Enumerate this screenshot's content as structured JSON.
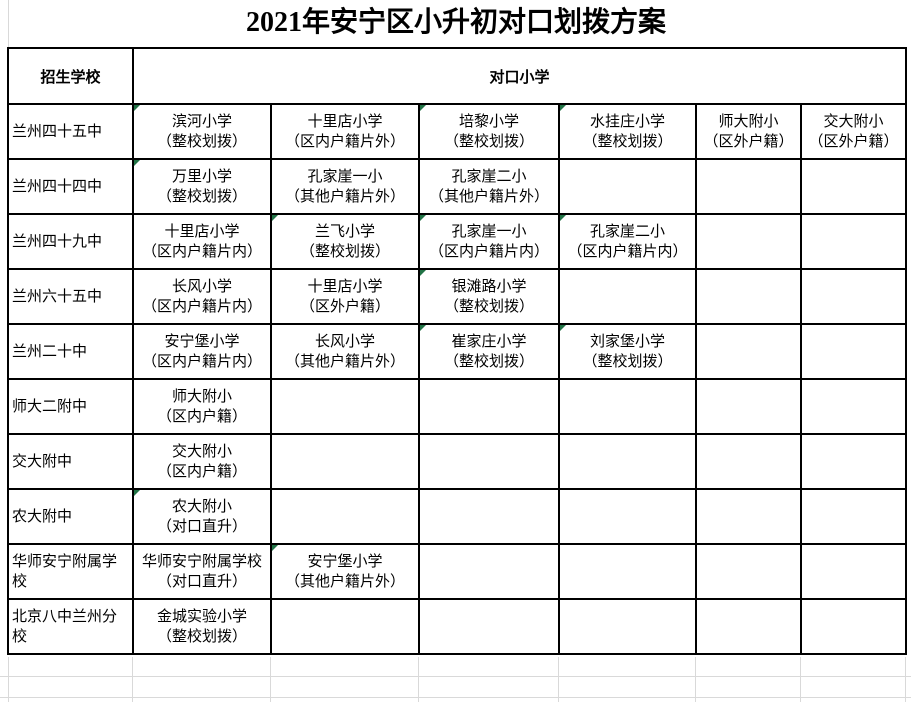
{
  "title": "2021年安宁区小升初对口划拨方案",
  "table": {
    "header": {
      "school_col": "招生学校",
      "primary_col": "对口小学"
    },
    "rows": [
      {
        "school": "兰州四十五中",
        "cells": [
          {
            "name": "滨河小学",
            "note": "（整校划拨）",
            "flag": true
          },
          {
            "name": "十里店小学",
            "note": "（区内户籍片外）",
            "flag": false
          },
          {
            "name": "培黎小学",
            "note": "（整校划拨）",
            "flag": true
          },
          {
            "name": "水挂庄小学",
            "note": "（整校划拨）",
            "flag": true
          },
          {
            "name": "师大附小",
            "note": "（区外户籍）",
            "flag": false
          },
          {
            "name": "交大附小",
            "note": "（区外户籍）",
            "flag": false
          }
        ]
      },
      {
        "school": "兰州四十四中",
        "cells": [
          {
            "name": "万里小学",
            "note": "（整校划拨）",
            "flag": true
          },
          {
            "name": "孔家崖一小",
            "note": "（其他户籍片外）",
            "flag": false
          },
          {
            "name": "孔家崖二小",
            "note": "（其他户籍片外）",
            "flag": false
          },
          null,
          null,
          null
        ]
      },
      {
        "school": "兰州四十九中",
        "cells": [
          {
            "name": "十里店小学",
            "note": "（区内户籍片内）",
            "flag": false
          },
          {
            "name": "兰飞小学",
            "note": "（整校划拨）",
            "flag": true
          },
          {
            "name": "孔家崖一小",
            "note": "（区内户籍片内）",
            "flag": true
          },
          {
            "name": "孔家崖二小",
            "note": "（区内户籍片内）",
            "flag": true
          },
          null,
          null
        ]
      },
      {
        "school": "兰州六十五中",
        "cells": [
          {
            "name": "长风小学",
            "note": "（区内户籍片内）",
            "flag": false
          },
          {
            "name": "十里店小学",
            "note": "（区外户籍）",
            "flag": false
          },
          {
            "name": "银滩路小学",
            "note": "（整校划拨）",
            "flag": true
          },
          null,
          null,
          null
        ]
      },
      {
        "school": "兰州二十中",
        "cells": [
          {
            "name": "安宁堡小学",
            "note": "（区内户籍片内）",
            "flag": false
          },
          {
            "name": "长风小学",
            "note": "（其他户籍片外）",
            "flag": false
          },
          {
            "name": "崔家庄小学",
            "note": "（整校划拨）",
            "flag": true
          },
          {
            "name": "刘家堡小学",
            "note": "（整校划拨）",
            "flag": true
          },
          null,
          null
        ]
      },
      {
        "school": "师大二附中",
        "cells": [
          {
            "name": "师大附小",
            "note": "（区内户籍）",
            "flag": false
          },
          null,
          null,
          null,
          null,
          null
        ]
      },
      {
        "school": "交大附中",
        "cells": [
          {
            "name": "交大附小",
            "note": "（区内户籍）",
            "flag": false
          },
          null,
          null,
          null,
          null,
          null
        ]
      },
      {
        "school": "农大附中",
        "cells": [
          {
            "name": "农大附小",
            "note": "（对口直升）",
            "flag": true
          },
          null,
          null,
          null,
          null,
          null
        ]
      },
      {
        "school": "华师安宁附属学校",
        "cells": [
          {
            "name": "华师安宁附属学校",
            "note": "（对口直升）",
            "flag": false
          },
          {
            "name": "安宁堡小学",
            "note": "（其他户籍片外）",
            "flag": true
          },
          null,
          null,
          null,
          null
        ]
      },
      {
        "school": "北京八中兰州分校",
        "cells": [
          {
            "name": "金城实验小学",
            "note": "（整校划拨）",
            "flag": false
          },
          null,
          null,
          null,
          null,
          null
        ]
      }
    ]
  },
  "colors": {
    "table_border": "#000000",
    "faint_grid": "#d9d9d9",
    "indicator_triangle": "#217346",
    "text": "#000000",
    "background": "#ffffff"
  }
}
